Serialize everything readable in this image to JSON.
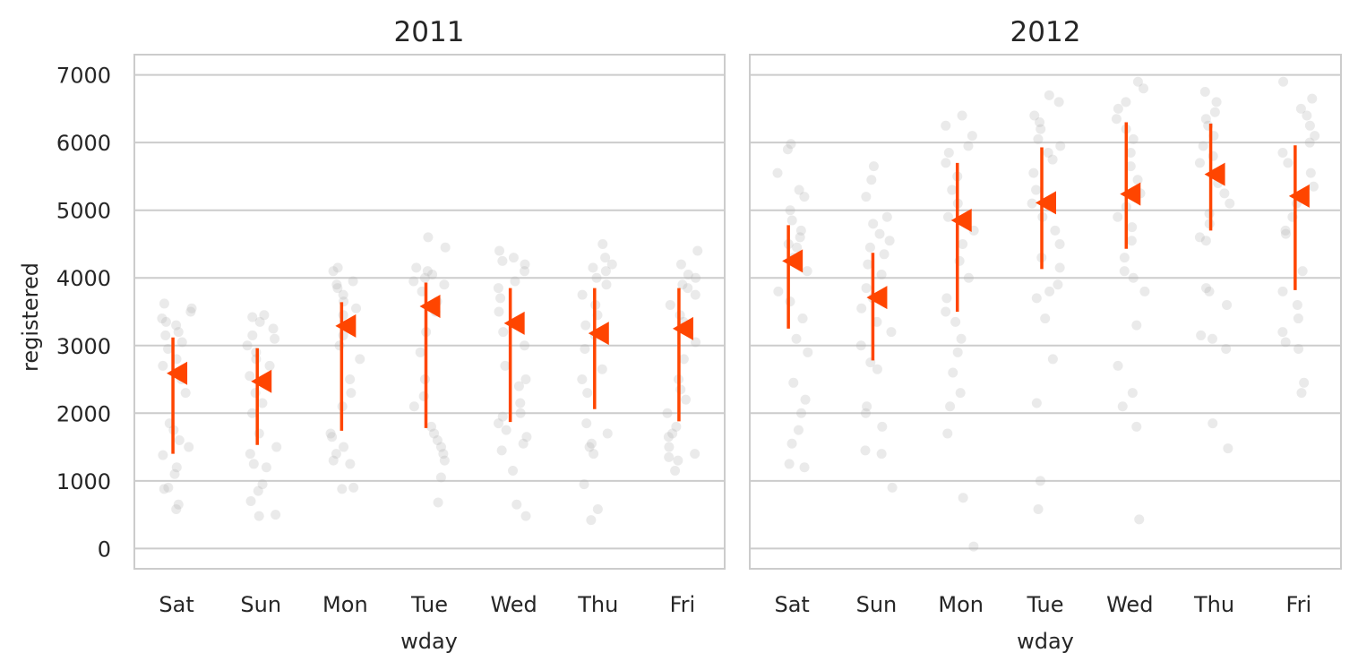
{
  "chart_data": {
    "type": "scatter",
    "ylabel": "registered",
    "xlabel": "wday",
    "categories": [
      "Sat",
      "Sun",
      "Mon",
      "Tue",
      "Wed",
      "Thu",
      "Fri"
    ],
    "yticks": [
      0,
      1000,
      2000,
      3000,
      4000,
      5000,
      6000,
      7000
    ],
    "ylim": [
      -300,
      7300
    ],
    "grid": true,
    "colors": {
      "points": "#aaaaaa",
      "summary": "#ff4500",
      "grid": "#cccccc",
      "text": "#262626"
    },
    "panels": [
      {
        "title": "2011",
        "summary": [
          {
            "category": "Sat",
            "mean": 2590,
            "low": 1400,
            "high": 3120
          },
          {
            "category": "Sun",
            "mean": 2470,
            "low": 1530,
            "high": 2960
          },
          {
            "category": "Mon",
            "mean": 3290,
            "low": 1740,
            "high": 3640
          },
          {
            "category": "Tue",
            "mean": 3580,
            "low": 1780,
            "high": 3930
          },
          {
            "category": "Wed",
            "mean": 3330,
            "low": 1870,
            "high": 3850
          },
          {
            "category": "Thu",
            "mean": 3180,
            "low": 2060,
            "high": 3850
          },
          {
            "category": "Fri",
            "mean": 3250,
            "low": 1880,
            "high": 3850
          }
        ],
        "points": [
          [
            580,
            650,
            880,
            900,
            1100,
            1200,
            1380,
            1500,
            1600,
            1750,
            1850,
            2300,
            2500,
            2700,
            2800,
            2950,
            3050,
            3150,
            3200,
            3300,
            3350,
            3400,
            3500,
            3550,
            3620
          ],
          [
            480,
            500,
            700,
            850,
            950,
            1200,
            1250,
            1400,
            1500,
            1700,
            2000,
            2150,
            2300,
            2550,
            2700,
            2800,
            2900,
            3000,
            3100,
            3150,
            3250,
            3350,
            3420,
            3450
          ],
          [
            880,
            900,
            1250,
            1300,
            1400,
            1500,
            1650,
            1700,
            2100,
            2300,
            2500,
            2800,
            3000,
            3150,
            3300,
            3450,
            3550,
            3650,
            3750,
            3850,
            3900,
            3950,
            4100,
            4150
          ],
          [
            680,
            1050,
            1300,
            1400,
            1500,
            1600,
            1700,
            1800,
            2100,
            2250,
            2500,
            2900,
            3200,
            3500,
            3650,
            3800,
            3900,
            3950,
            4000,
            4050,
            4100,
            4150,
            4450,
            4600
          ],
          [
            480,
            650,
            1150,
            1450,
            1550,
            1650,
            1750,
            1850,
            1950,
            2000,
            2150,
            2400,
            2500,
            2700,
            3000,
            3200,
            3500,
            3700,
            3850,
            3950,
            4100,
            4200,
            4250,
            4300,
            4400
          ],
          [
            420,
            580,
            950,
            1400,
            1500,
            1550,
            1700,
            1850,
            2300,
            2500,
            2650,
            2950,
            3150,
            3300,
            3450,
            3600,
            3750,
            3900,
            4000,
            4100,
            4150,
            4200,
            4300,
            4500
          ],
          [
            1150,
            1300,
            1350,
            1400,
            1500,
            1650,
            1700,
            1800,
            2000,
            2200,
            2350,
            2500,
            2800,
            3050,
            3350,
            3450,
            3600,
            3750,
            3850,
            3900,
            4000,
            4050,
            4200,
            4400
          ]
        ]
      },
      {
        "title": "2012",
        "summary": [
          {
            "category": "Sat",
            "mean": 4250,
            "low": 3250,
            "high": 4780
          },
          {
            "category": "Sun",
            "mean": 3710,
            "low": 2780,
            "high": 4370
          },
          {
            "category": "Mon",
            "mean": 4850,
            "low": 3500,
            "high": 5700
          },
          {
            "category": "Tue",
            "mean": 5110,
            "low": 4130,
            "high": 5930
          },
          {
            "category": "Wed",
            "mean": 5240,
            "low": 4430,
            "high": 6300
          },
          {
            "category": "Thu",
            "mean": 5530,
            "low": 4700,
            "high": 6280
          },
          {
            "category": "Fri",
            "mean": 5210,
            "low": 3820,
            "high": 5960
          }
        ],
        "points": [
          [
            1200,
            1250,
            1550,
            1750,
            2000,
            2200,
            2450,
            2900,
            3100,
            3400,
            3650,
            3800,
            4100,
            4300,
            4450,
            4500,
            4600,
            4700,
            4850,
            5000,
            5200,
            5300,
            5550,
            5900,
            5980
          ],
          [
            900,
            1400,
            1450,
            1800,
            2000,
            2100,
            2650,
            2750,
            3000,
            3200,
            3350,
            3550,
            3700,
            3850,
            4050,
            4200,
            4350,
            4450,
            4550,
            4650,
            4800,
            4900,
            5200,
            5450,
            5650
          ],
          [
            30,
            750,
            1700,
            2100,
            2300,
            2600,
            2900,
            3100,
            3350,
            3500,
            3700,
            4000,
            4250,
            4500,
            4700,
            4900,
            5100,
            5300,
            5500,
            5700,
            5850,
            5950,
            6100,
            6250,
            6400
          ],
          [
            580,
            1000,
            2150,
            2800,
            3400,
            3700,
            3800,
            3900,
            4150,
            4300,
            4500,
            4700,
            4900,
            5100,
            5300,
            5550,
            5750,
            5850,
            5950,
            6050,
            6200,
            6300,
            6400,
            6600,
            6700
          ],
          [
            430,
            1800,
            2100,
            2300,
            2700,
            3300,
            3800,
            4000,
            4100,
            4300,
            4550,
            4750,
            4900,
            5050,
            5250,
            5450,
            5650,
            5850,
            6050,
            6200,
            6350,
            6500,
            6600,
            6800,
            6900
          ],
          [
            1480,
            1850,
            2950,
            3100,
            3150,
            3600,
            3800,
            3850,
            4550,
            4600,
            4800,
            4950,
            5100,
            5250,
            5400,
            5550,
            5700,
            5800,
            5950,
            6100,
            6250,
            6350,
            6450,
            6600,
            6750
          ],
          [
            2300,
            2450,
            2950,
            3050,
            3200,
            3400,
            3600,
            3800,
            4100,
            4650,
            4700,
            4900,
            5100,
            5250,
            5350,
            5550,
            5700,
            5850,
            6000,
            6100,
            6250,
            6400,
            6500,
            6650,
            6900
          ]
        ]
      }
    ]
  }
}
